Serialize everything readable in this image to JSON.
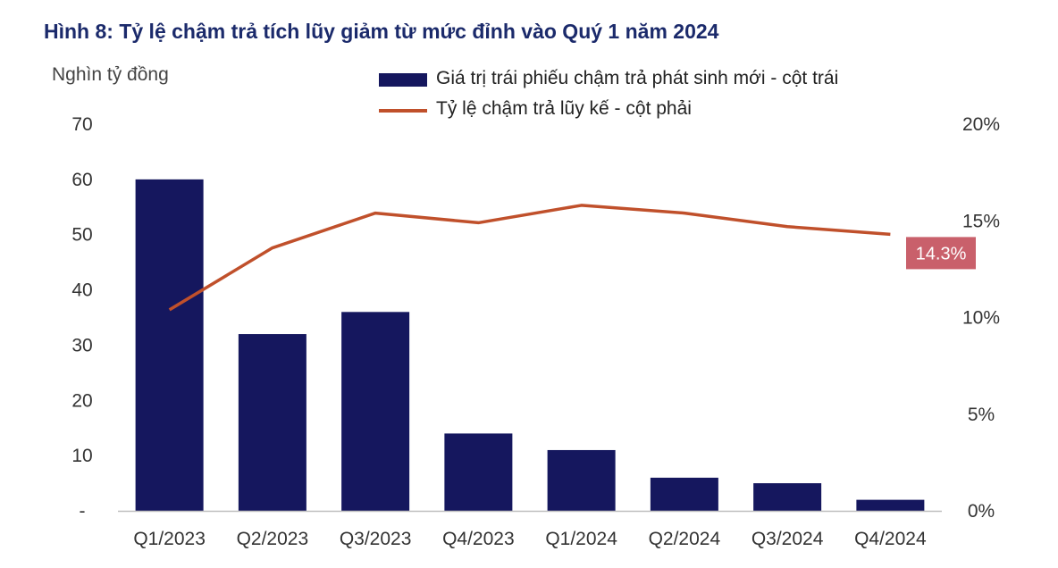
{
  "chart_data": {
    "type": "bar",
    "title": "Hình 8: Tỷ lệ chậm trả tích lũy giảm từ mức đỉnh vào Quý 1 năm 2024",
    "ylabel": "Nghìn tỷ đồng",
    "categories": [
      "Q1/2023",
      "Q2/2023",
      "Q3/2023",
      "Q4/2023",
      "Q1/2024",
      "Q2/2024",
      "Q3/2024",
      "Q4/2024"
    ],
    "series": [
      {
        "name": "Giá trị trái phiếu chậm trả phát sinh mới - cột trái",
        "type": "bar",
        "axis": "left",
        "values": [
          60,
          32,
          36,
          14,
          11,
          6,
          5,
          2
        ],
        "color": "#15175e"
      },
      {
        "name": "Tỷ lệ chậm trả lũy kế - cột phải",
        "type": "line",
        "axis": "right",
        "values": [
          10.4,
          13.6,
          15.4,
          14.9,
          15.8,
          15.4,
          14.7,
          14.3
        ],
        "color": "#c0502b"
      }
    ],
    "y_left": {
      "ylim": [
        0,
        70
      ],
      "ticks": [
        "-",
        "10",
        "20",
        "30",
        "40",
        "50",
        "60",
        "70"
      ]
    },
    "y_right": {
      "ylim": [
        0,
        20
      ],
      "ticks": [
        "0%",
        "5%",
        "10%",
        "15%",
        "20%"
      ]
    },
    "annotation": {
      "text": "14.3%",
      "color": "#c9606b"
    },
    "grid": false,
    "legend": "top"
  }
}
